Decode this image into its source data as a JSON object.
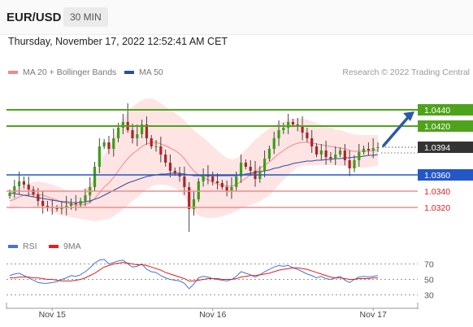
{
  "header": {
    "symbol": "EUR/USD",
    "timeframe": "30 MIN"
  },
  "datetime": "Thursday, November 17, 2022 12:52:41 AM CET",
  "legend": {
    "ma20": {
      "label": "MA 20 + Bollinger Bands",
      "color": "#f08a8a"
    },
    "ma50": {
      "label": "MA 50",
      "color": "#2c4f9c"
    }
  },
  "credit": "Research © 2022 Trading Central",
  "rsi_legend": {
    "rsi": {
      "label": "RSI",
      "color": "#4a73d1"
    },
    "ma9": {
      "label": "9MA",
      "color": "#e0201b"
    }
  },
  "colors": {
    "resistance": "#4fa31a",
    "pivot": "#2457c5",
    "support": "#e89090",
    "last": "#333333",
    "arrow": "#2c59a6",
    "bullish_candle": "#39a014",
    "bearish_candle": "#b22222",
    "band_fill": "#ffe4e4"
  },
  "chart_data": [
    {
      "type": "candlestick",
      "symbol": "EUR/USD",
      "timeframe": "30 MIN",
      "x_ticks": [
        "Nov 15",
        "Nov 16",
        "Nov 17"
      ],
      "ylim": [
        1.0285,
        1.0465
      ],
      "price_levels": [
        {
          "value": 1.044,
          "label": "1.0440",
          "kind": "resistance"
        },
        {
          "value": 1.042,
          "label": "1.0420",
          "kind": "resistance"
        },
        {
          "value": 1.0394,
          "label": "1.0394",
          "kind": "last"
        },
        {
          "value": 1.036,
          "label": "1.0360",
          "kind": "pivot"
        },
        {
          "value": 1.034,
          "label": "1.0340",
          "kind": "support"
        },
        {
          "value": 1.032,
          "label": "1.0320",
          "kind": "support"
        }
      ],
      "close": [
        1.0338,
        1.0346,
        1.0352,
        1.0348,
        1.0342,
        1.0336,
        1.0328,
        1.0322,
        1.032,
        1.0319,
        1.0318,
        1.032,
        1.0322,
        1.0325,
        1.0324,
        1.0328,
        1.0335,
        1.0345,
        1.037,
        1.0395,
        1.04,
        1.0392,
        1.0405,
        1.0418,
        1.0425,
        1.0415,
        1.0405,
        1.041,
        1.0422,
        1.0405,
        1.0395,
        1.0395,
        1.0385,
        1.0375,
        1.0365,
        1.0362,
        1.0358,
        1.0345,
        1.0318,
        1.033,
        1.0352,
        1.036,
        1.0358,
        1.0352,
        1.035,
        1.0345,
        1.034,
        1.0345,
        1.0358,
        1.0375,
        1.037,
        1.0365,
        1.0355,
        1.0365,
        1.038,
        1.0392,
        1.0405,
        1.0415,
        1.0418,
        1.0425,
        1.0422,
        1.042,
        1.0412,
        1.0405,
        1.0395,
        1.0385,
        1.039,
        1.0382,
        1.038,
        1.0385,
        1.039,
        1.0378,
        1.0368,
        1.0378,
        1.0388,
        1.0392,
        1.039,
        1.0393,
        1.0394
      ],
      "ma20": [
        1.0328,
        1.033,
        1.0333,
        1.0335,
        1.0336,
        1.0336,
        1.0336,
        1.0335,
        1.0333,
        1.0331,
        1.0329,
        1.0327,
        1.0325,
        1.0324,
        1.0323,
        1.0323,
        1.0324,
        1.0326,
        1.0331,
        1.0338,
        1.0345,
        1.035,
        1.0357,
        1.0365,
        1.0373,
        1.038,
        1.0386,
        1.039,
        1.0395,
        1.0398,
        1.04,
        1.04,
        1.0398,
        1.0396,
        1.0393,
        1.039,
        1.0386,
        1.038,
        1.0372,
        1.0365,
        1.036,
        1.0357,
        1.0354,
        1.0351,
        1.0349,
        1.0347,
        1.0346,
        1.0346,
        1.0348,
        1.0352,
        1.0356,
        1.036,
        1.0364,
        1.0368,
        1.0372,
        1.0376,
        1.0381,
        1.0386,
        1.039,
        1.0394,
        1.0397,
        1.0399,
        1.04,
        1.04,
        1.0399,
        1.0398,
        1.0397,
        1.0396,
        1.0395,
        1.0394,
        1.0393,
        1.0392,
        1.039,
        1.0389,
        1.0389,
        1.0389,
        1.0389,
        1.039,
        1.039
      ],
      "ma50": [
        1.0338,
        1.0337,
        1.0336,
        1.0335,
        1.0334,
        1.0333,
        1.0332,
        1.0331,
        1.033,
        1.0329,
        1.0328,
        1.0327,
        1.0327,
        1.0326,
        1.0326,
        1.0326,
        1.0327,
        1.0328,
        1.033,
        1.0332,
        1.0335,
        1.0338,
        1.0341,
        1.0344,
        1.0347,
        1.035,
        1.0352,
        1.0354,
        1.0356,
        1.0358,
        1.0359,
        1.036,
        1.0361,
        1.0361,
        1.0362,
        1.0362,
        1.0362,
        1.0361,
        1.036,
        1.0359,
        1.0359,
        1.0359,
        1.0359,
        1.0359,
        1.0359,
        1.0359,
        1.0359,
        1.0359,
        1.0359,
        1.036,
        1.0361,
        1.0362,
        1.0363,
        1.0364,
        1.0365,
        1.0366,
        1.0368,
        1.0369,
        1.0371,
        1.0372,
        1.0374,
        1.0375,
        1.0376,
        1.0377,
        1.0377,
        1.0378,
        1.0378,
        1.0379,
        1.0379,
        1.038,
        1.038,
        1.0381,
        1.0381,
        1.0382,
        1.0382,
        1.0383,
        1.0384,
        1.0384,
        1.0385
      ],
      "band_width": [
        0.001,
        0.0011,
        0.0012,
        0.0013,
        0.0014,
        0.0015,
        0.0016,
        0.0016,
        0.0017,
        0.0017,
        0.0017,
        0.0017,
        0.0016,
        0.0016,
        0.0016,
        0.0017,
        0.0019,
        0.0022,
        0.0028,
        0.0034,
        0.004,
        0.0044,
        0.0048,
        0.0052,
        0.0055,
        0.0057,
        0.0058,
        0.0058,
        0.0057,
        0.0056,
        0.0054,
        0.0052,
        0.005,
        0.0048,
        0.0047,
        0.0046,
        0.0046,
        0.0047,
        0.0049,
        0.005,
        0.005,
        0.0049,
        0.0047,
        0.0044,
        0.0041,
        0.0038,
        0.0035,
        0.0033,
        0.0032,
        0.0033,
        0.0035,
        0.0037,
        0.0039,
        0.004,
        0.0041,
        0.0041,
        0.004,
        0.0038,
        0.0036,
        0.0034,
        0.0032,
        0.003,
        0.0029,
        0.0028,
        0.0027,
        0.0026,
        0.0025,
        0.0024,
        0.0023,
        0.0022,
        0.0022,
        0.0021,
        0.0021,
        0.0021,
        0.002,
        0.002,
        0.002,
        0.0019,
        0.0019
      ],
      "forecast": {
        "from": 1.0394,
        "to": 1.044,
        "direction": "up"
      }
    },
    {
      "type": "line",
      "name": "RSI",
      "y_ticks": [
        70,
        50,
        30
      ],
      "ylim": [
        20,
        80
      ],
      "rsi": [
        55,
        57,
        58,
        55,
        52,
        49,
        46,
        45,
        45,
        46,
        47,
        50,
        52,
        55,
        54,
        56,
        60,
        65,
        71,
        75,
        76,
        70,
        72,
        74,
        75,
        70,
        66,
        67,
        70,
        63,
        60,
        59,
        55,
        52,
        50,
        49,
        48,
        45,
        38,
        44,
        52,
        54,
        53,
        51,
        50,
        49,
        48,
        50,
        54,
        60,
        58,
        56,
        53,
        56,
        60,
        63,
        66,
        68,
        67,
        68,
        65,
        63,
        60,
        57,
        55,
        52,
        54,
        51,
        50,
        52,
        54,
        49,
        46,
        50,
        53,
        54,
        53,
        54,
        55
      ],
      "ma9": [
        52,
        52,
        53,
        53,
        53,
        52,
        52,
        51,
        50,
        50,
        49,
        48,
        48,
        48,
        49,
        50,
        52,
        55,
        58,
        62,
        66,
        68,
        70,
        71,
        72,
        71,
        70,
        69,
        69,
        68,
        66,
        64,
        62,
        59,
        57,
        55,
        53,
        51,
        48,
        48,
        49,
        50,
        51,
        51,
        51,
        50,
        50,
        50,
        51,
        53,
        54,
        55,
        55,
        56,
        57,
        58,
        60,
        62,
        63,
        64,
        65,
        65,
        64,
        63,
        61,
        59,
        57,
        55,
        53,
        52,
        52,
        51,
        50,
        50,
        51,
        51,
        51,
        52,
        52
      ]
    }
  ]
}
